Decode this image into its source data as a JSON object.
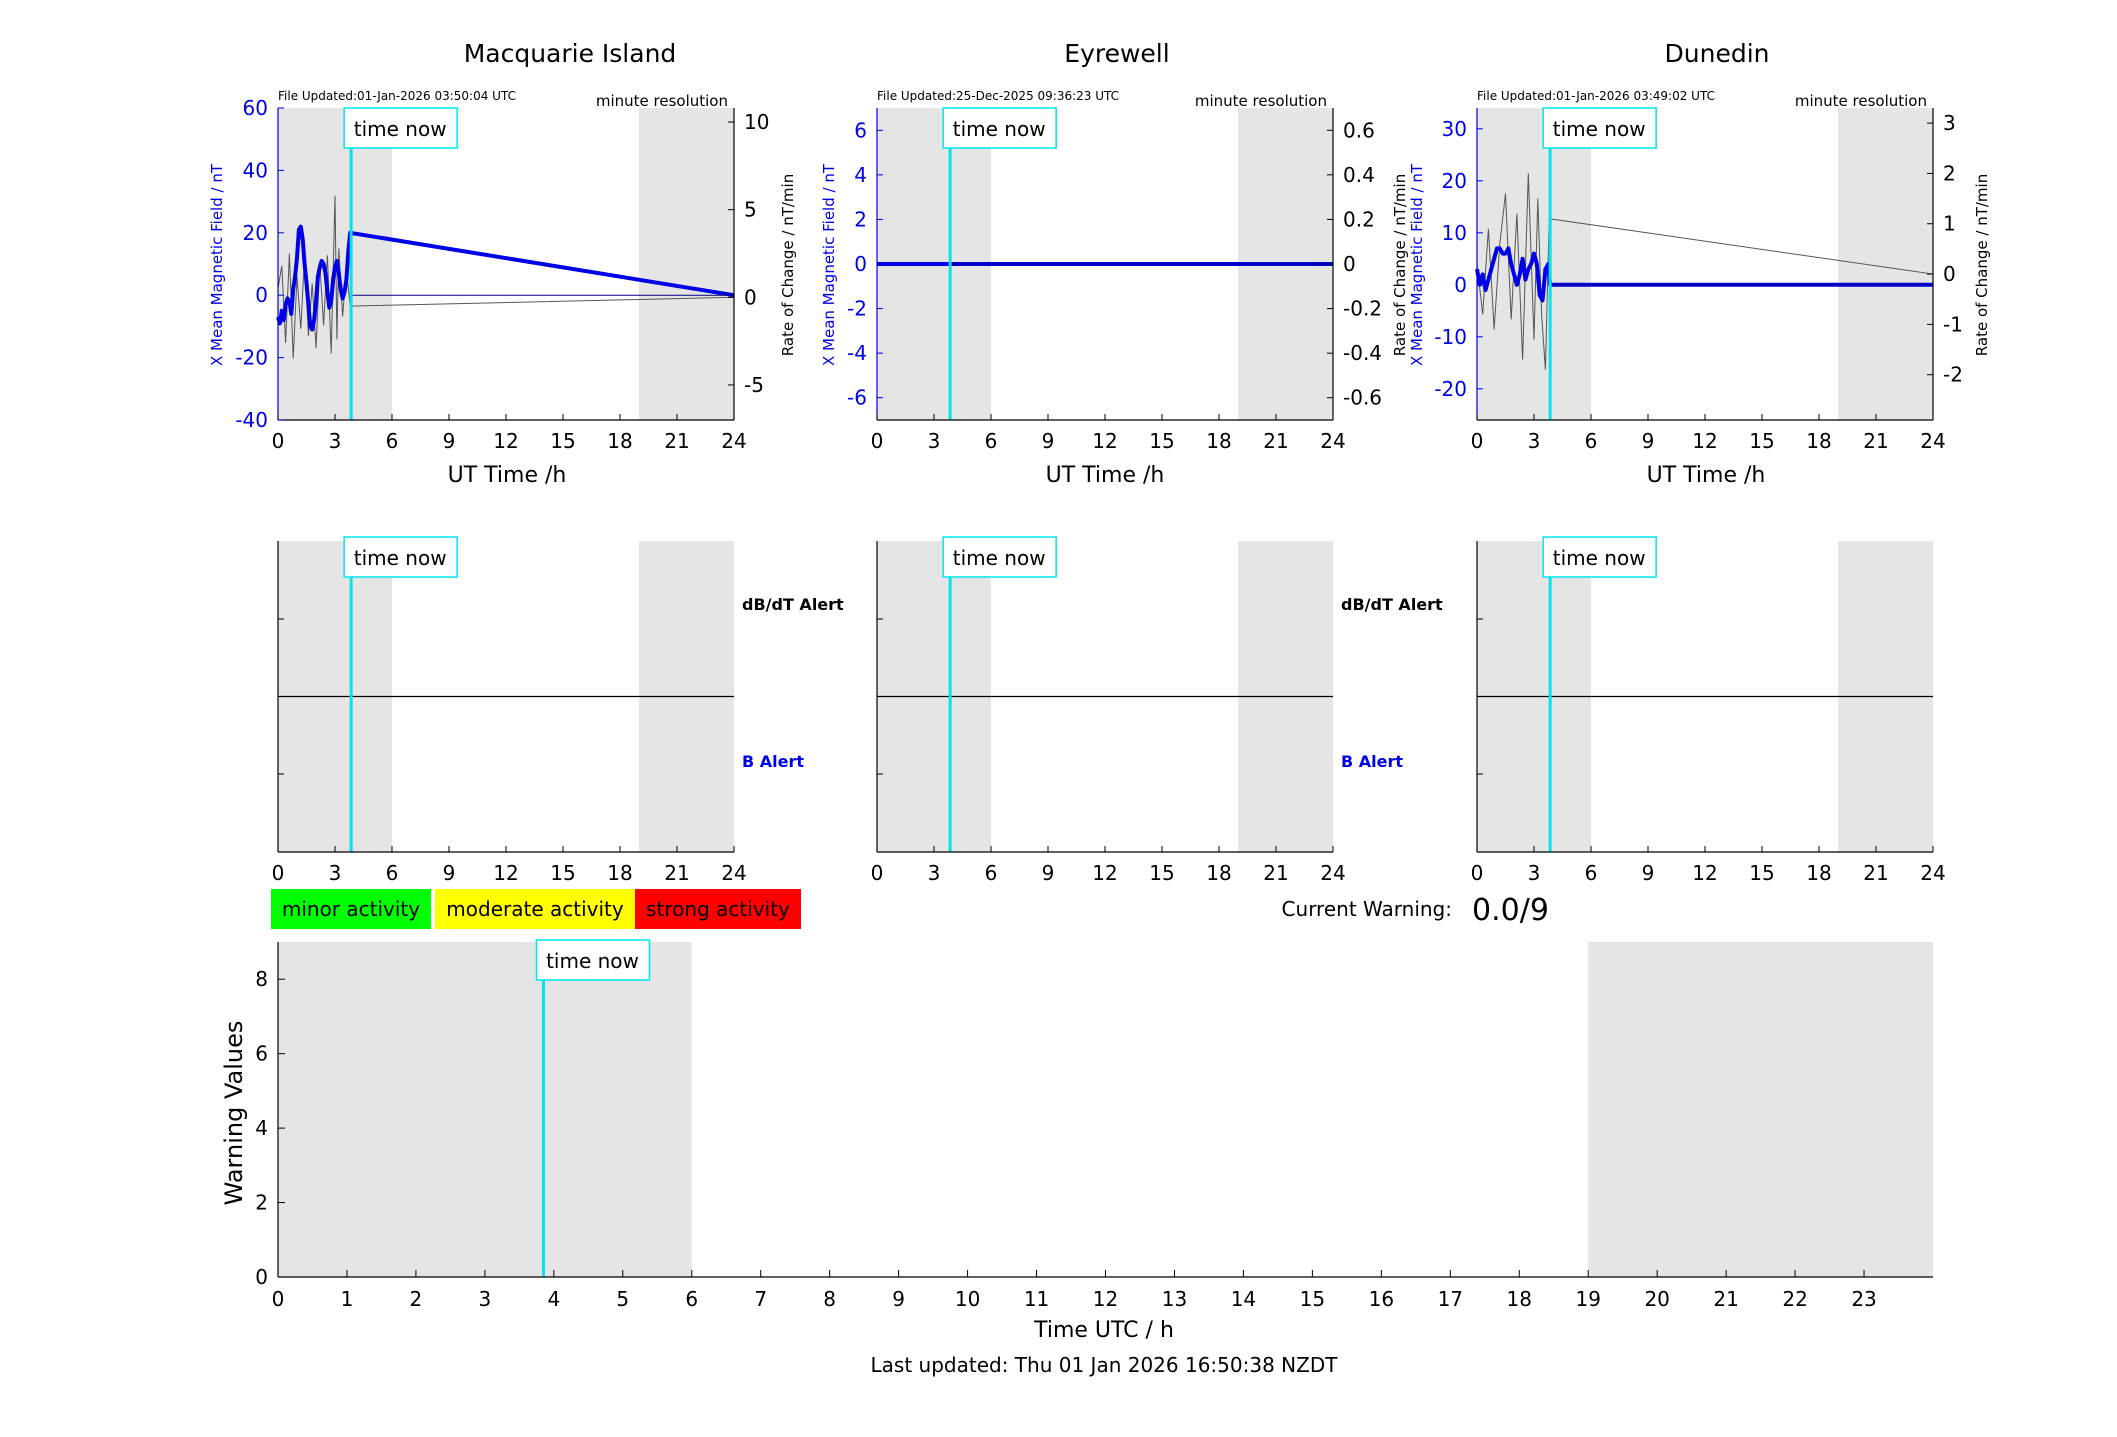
{
  "colors": {
    "shade": "#e5e5e5",
    "time_now": "#00e5ee",
    "field": "#0000e6",
    "rate": "#555555",
    "minor": "#00ff00",
    "moderate": "#ffff00",
    "strong": "#ff0000"
  },
  "common": {
    "time_now_label": "time now",
    "resolution_label": "minute resolution",
    "ut_xlabel": "UT Time /h",
    "left_ylabel": "X Mean Magnetic Field / nT",
    "right_ylabel": "Rate of Change / nT/min",
    "dbdt_alert_label": "dB/dT Alert",
    "b_alert_label": "B Alert",
    "hour_ticks": [
      "0",
      "3",
      "6",
      "9",
      "12",
      "15",
      "18",
      "21",
      "24"
    ]
  },
  "legend": {
    "minor": "minor activity",
    "moderate": "moderate activity",
    "strong": "strong activity"
  },
  "current_warning": {
    "label": "Current Warning:",
    "value": "0.0/9"
  },
  "footer": {
    "last_updated": "Last updated: Thu 01 Jan 2026 16:50:38 NZDT"
  },
  "chart_data": [
    {
      "type": "line",
      "title": "Macquarie Island",
      "file_updated": "File Updated:01-Jan-2026 03:50:04 UTC",
      "xlim": [
        0,
        24
      ],
      "ylim_left": [
        -40,
        60
      ],
      "yticks_left": [
        "60",
        "40",
        "20",
        "0",
        "-20",
        "-40"
      ],
      "ylim_right": [
        -7.0,
        10.8
      ],
      "yticks_right": [
        "10",
        "5",
        "0",
        "-5"
      ],
      "time_now_h": 3.85,
      "shaded_h": [
        [
          0,
          6
        ],
        [
          19,
          24
        ]
      ],
      "series": [
        {
          "role": "field",
          "x": [
            0,
            0.1,
            0.2,
            0.3,
            0.4,
            0.5,
            0.6,
            0.7,
            0.8,
            0.9,
            1.0,
            1.1,
            1.2,
            1.3,
            1.4,
            1.5,
            1.6,
            1.7,
            1.8,
            1.9,
            2.0,
            2.1,
            2.2,
            2.3,
            2.4,
            2.5,
            2.6,
            2.7,
            2.8,
            2.9,
            3.0,
            3.1,
            3.2,
            3.3,
            3.4,
            3.5,
            3.6,
            3.7,
            3.8,
            24
          ],
          "y": [
            -7,
            -9,
            -5,
            -8,
            -3,
            -1,
            -2,
            -6,
            2,
            6,
            12,
            21,
            22,
            18,
            10,
            4,
            -3,
            -10,
            -11,
            -8,
            -2,
            6,
            9,
            11,
            10,
            7,
            1,
            -4,
            -2,
            5,
            9,
            11,
            7,
            2,
            -1,
            1,
            5,
            14,
            20,
            0
          ]
        },
        {
          "role": "rate",
          "x": [
            0,
            0.2,
            0.4,
            0.6,
            0.8,
            1.0,
            1.2,
            1.4,
            1.6,
            1.8,
            2.0,
            2.2,
            2.4,
            2.6,
            2.8,
            3.0,
            3.1,
            3.2,
            3.4,
            3.6,
            3.8,
            24
          ],
          "y": [
            0.5,
            1.8,
            -2.6,
            2.5,
            -3.5,
            1.2,
            -1.8,
            2.4,
            -2.2,
            0.8,
            -2.9,
            1.9,
            -1.6,
            2.4,
            -3.2,
            5.8,
            -2.4,
            2.8,
            -1.1,
            1.6,
            -0.5,
            0
          ]
        }
      ]
    },
    {
      "type": "line",
      "title": "Eyrewell",
      "file_updated": "File Updated:25-Dec-2025 09:36:23 UTC",
      "xlim": [
        0,
        24
      ],
      "ylim_left": [
        -7,
        7
      ],
      "yticks_left": [
        "6",
        "4",
        "2",
        "0",
        "-2",
        "-4",
        "-6"
      ],
      "ylim_right": [
        -0.7,
        0.7
      ],
      "yticks_right": [
        "0.6",
        "0.4",
        "0.2",
        "0",
        "-0.2",
        "-0.4",
        "-0.6"
      ],
      "time_now_h": 3.85,
      "shaded_h": [
        [
          0,
          6
        ],
        [
          19,
          24
        ]
      ],
      "series": [
        {
          "role": "field",
          "x": [
            0,
            24
          ],
          "y": [
            0,
            0
          ]
        },
        {
          "role": "rate",
          "x": [
            0,
            24
          ],
          "y": [
            0,
            0
          ]
        }
      ]
    },
    {
      "type": "line",
      "title": "Dunedin",
      "file_updated": "File Updated:01-Jan-2026 03:49:02 UTC",
      "xlim": [
        0,
        24
      ],
      "ylim_left": [
        -26,
        34
      ],
      "yticks_left": [
        "30",
        "20",
        "10",
        "0",
        "-10",
        "-20"
      ],
      "ylim_right": [
        -2.9,
        3.3
      ],
      "yticks_right": [
        "3",
        "2",
        "1",
        "0",
        "-1",
        "-2"
      ],
      "time_now_h": 3.85,
      "shaded_h": [
        [
          0,
          6
        ],
        [
          19,
          24
        ]
      ],
      "series": [
        {
          "role": "field",
          "x": [
            0,
            0.15,
            0.3,
            0.45,
            0.6,
            0.75,
            0.9,
            1.05,
            1.2,
            1.35,
            1.5,
            1.65,
            1.8,
            1.95,
            2.1,
            2.25,
            2.4,
            2.55,
            2.7,
            2.85,
            3.0,
            3.15,
            3.3,
            3.45,
            3.6,
            3.75,
            3.85,
            24
          ],
          "y": [
            3,
            0,
            2,
            -1,
            1,
            3,
            5,
            7,
            7,
            6,
            6,
            7,
            4,
            2,
            0,
            2,
            5,
            1,
            3,
            4,
            6,
            4,
            -2,
            -3,
            3,
            4,
            0,
            0
          ]
        },
        {
          "role": "rate",
          "x": [
            0,
            0.3,
            0.6,
            0.9,
            1.2,
            1.5,
            1.8,
            2.1,
            2.4,
            2.7,
            3.0,
            3.2,
            3.4,
            3.6,
            3.8,
            24
          ],
          "y": [
            0.2,
            -0.8,
            0.9,
            -1.1,
            0.6,
            1.6,
            -0.9,
            1.2,
            -1.7,
            2.0,
            -1.3,
            1.5,
            -0.8,
            -1.9,
            1.1,
            0
          ]
        }
      ]
    },
    {
      "type": "line",
      "title": "",
      "xlim": [
        0,
        24
      ],
      "ylim": [
        0,
        9
      ],
      "yticks": [
        "0",
        "2",
        "4",
        "6",
        "8"
      ],
      "xticks": [
        "0",
        "1",
        "2",
        "3",
        "4",
        "5",
        "6",
        "7",
        "8",
        "9",
        "10",
        "11",
        "12",
        "13",
        "14",
        "15",
        "16",
        "17",
        "18",
        "19",
        "20",
        "21",
        "22",
        "23"
      ],
      "xlabel": "Time UTC / h",
      "ylabel": "Warning Values",
      "time_now_h": 3.85,
      "shaded_h": [
        [
          0,
          6
        ],
        [
          19,
          24
        ]
      ],
      "series": []
    }
  ]
}
